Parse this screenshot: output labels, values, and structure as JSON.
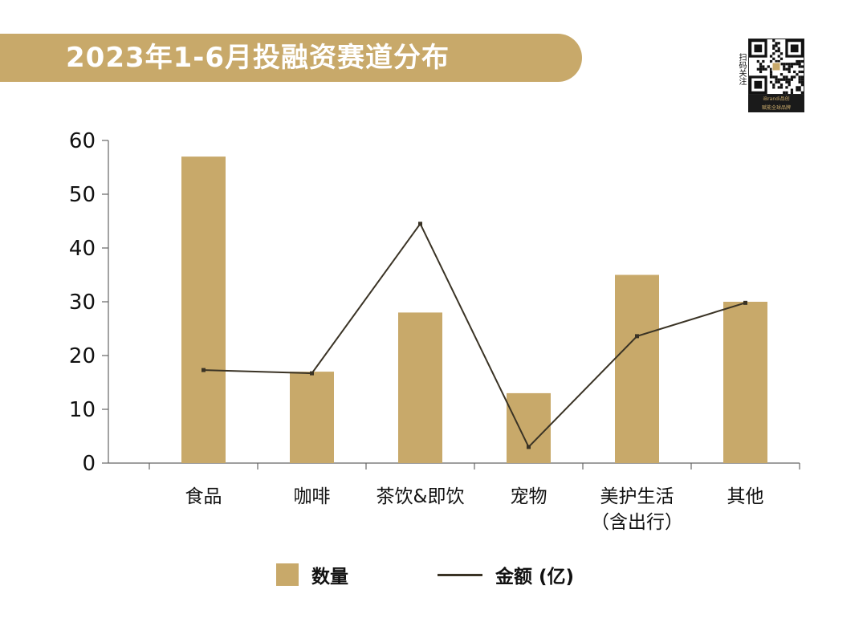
{
  "title": "2023年1-6月投融资赛道分布",
  "qr": {
    "side_text": "扫码关注",
    "footer_line1": "iBrandi品创",
    "footer_line2": "赋能全球品牌"
  },
  "legend": {
    "bar_label": "数量",
    "line_label": "金额 (亿)"
  },
  "colors": {
    "bar": "#c8a96a",
    "line": "#3a3325",
    "axis": "#666666"
  },
  "chart_data": {
    "type": "bar",
    "categories": [
      [
        "食品"
      ],
      [
        "咖啡"
      ],
      [
        "茶饮&即饮"
      ],
      [
        "宠物"
      ],
      [
        "美护生活",
        "（含出行）"
      ],
      [
        "其他"
      ]
    ],
    "series": [
      {
        "name": "数量",
        "type": "bar",
        "values": [
          57,
          17,
          28,
          13,
          35,
          30
        ]
      },
      {
        "name": "金额 (亿)",
        "type": "line",
        "values": [
          17.3,
          16.7,
          44.5,
          3.0,
          23.6,
          29.8
        ]
      }
    ],
    "ylim": [
      0,
      60
    ],
    "yticks": [
      0,
      10,
      20,
      30,
      40,
      50,
      60
    ],
    "grid": false,
    "legend_position": "bottom"
  }
}
